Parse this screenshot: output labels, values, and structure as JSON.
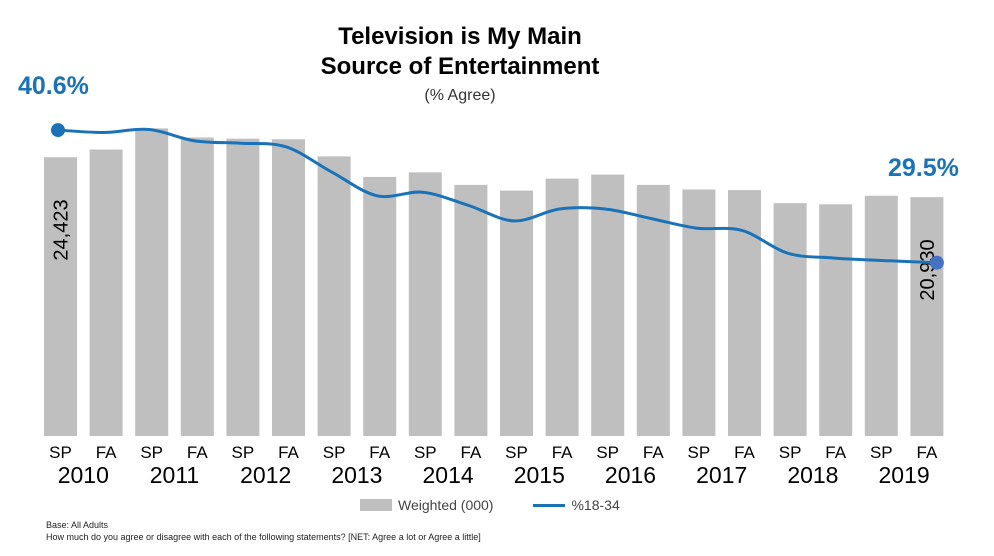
{
  "title_line1": "Television is My Main",
  "title_line2": "Source of Entertainment",
  "subtitle": "(% Agree)",
  "legend": {
    "bar": "Weighted (000)",
    "line": "%18-34"
  },
  "footnote": {
    "base": "Base: All Adults",
    "question": "How much do you agree or disagree with each of the following statements? [NET: Agree a lot or Agree a little]"
  },
  "colors": {
    "bar": "#bfbfbf",
    "line": "#1a73b8",
    "end_marker": "#4472c4"
  },
  "chart_data": {
    "type": "bar",
    "categories": [
      "SP",
      "FA",
      "SP",
      "FA",
      "SP",
      "FA",
      "SP",
      "FA",
      "SP",
      "FA",
      "SP",
      "FA",
      "SP",
      "FA",
      "SP",
      "FA",
      "SP",
      "FA",
      "SP",
      "FA"
    ],
    "years": [
      "2010",
      "2011",
      "2012",
      "2013",
      "2014",
      "2015",
      "2016",
      "2017",
      "2018",
      "2019"
    ],
    "series": [
      {
        "name": "Weighted (000)",
        "type": "bar",
        "values": [
          24423,
          25100,
          26950,
          26150,
          26050,
          26000,
          24500,
          22700,
          23100,
          22000,
          21500,
          22550,
          22900,
          22000,
          21600,
          21550,
          20400,
          20300,
          21050,
          20930
        ],
        "labels": {
          "0": "24,423",
          "19": "20,930"
        }
      },
      {
        "name": "%18-34",
        "type": "line",
        "values": [
          40.6,
          40.4,
          40.65,
          39.7,
          39.5,
          39.2,
          37.1,
          35.1,
          35.4,
          34.3,
          33.0,
          34.0,
          34.0,
          33.2,
          32.4,
          32.2,
          30.3,
          29.9,
          29.7,
          29.5
        ],
        "labels": {
          "0": "40.6%",
          "19": "29.5%"
        }
      }
    ],
    "bar_ylim": [
      0,
      29000
    ],
    "line_ylim": [
      15,
      42.7
    ],
    "grid": false,
    "legend_position": "bottom"
  }
}
